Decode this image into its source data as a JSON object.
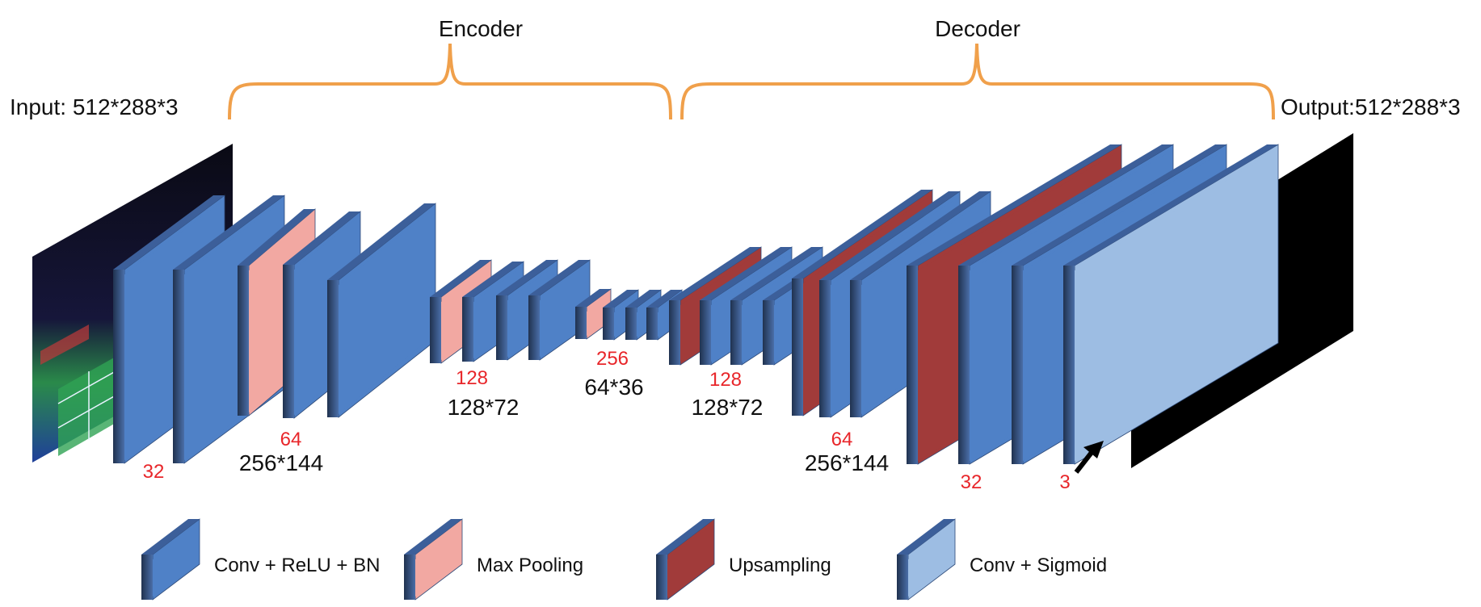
{
  "sections": {
    "encoder": "Encoder",
    "decoder": "Decoder"
  },
  "io": {
    "input": "Input: 512*288*3",
    "output": "Output:512*288*3"
  },
  "channels": {
    "enc_32": "32",
    "enc_64": "64",
    "enc_128": "128",
    "mid_256": "256",
    "dec_128": "128",
    "dec_64": "64",
    "dec_32": "32",
    "dec_3": "3"
  },
  "dims": {
    "enc_256x144": "256*144",
    "enc_128x72": "128*72",
    "mid_64x36": "64*36",
    "dec_128x72": "128*72",
    "dec_256x144": "256*144"
  },
  "legend": [
    {
      "label": "Conv + ReLU + BN",
      "color": "#4f81c7"
    },
    {
      "label": "Max Pooling",
      "color": "#f2a8a2"
    },
    {
      "label": "Upsampling",
      "color": "#a13b3a"
    },
    {
      "label": "Conv + Sigmoid",
      "color": "#9dbde3"
    }
  ],
  "colors": {
    "conv": "#4f81c7",
    "pool": "#f2a8a2",
    "upsample": "#a13b3a",
    "sigmoid": "#9dbde3",
    "bracket": "#f0a04b",
    "channel_text": "#e8262a"
  }
}
